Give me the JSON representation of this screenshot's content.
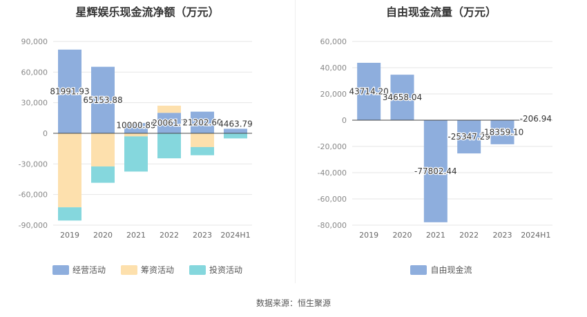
{
  "source": "数据来源：恒生聚源",
  "chart_data": [
    {
      "type": "bar",
      "stacked": true,
      "title": "星辉娱乐现金流净额（万元）",
      "categories": [
        "2019",
        "2020",
        "2021",
        "2022",
        "2023",
        "2024H1"
      ],
      "ylim": [
        -90000,
        90000
      ],
      "yticks": [
        90000,
        60000,
        30000,
        0,
        -30000,
        -60000,
        -90000
      ],
      "ytick_labels": [
        "90,000",
        "60,000",
        "30,000",
        "0",
        "-30,000",
        "-60,000",
        "-90,000"
      ],
      "grid": true,
      "legend_position": "bottom",
      "series": [
        {
          "name": "经营活动",
          "color": "#8eaedd",
          "values": [
            81991.93,
            65153.88,
            10000.85,
            20061.7,
            21202.6,
            4463.79
          ]
        },
        {
          "name": "筹资活动",
          "color": "#fde0ad",
          "values": [
            -72500,
            -32500,
            -3000,
            7000,
            -13500,
            0
          ]
        },
        {
          "name": "投资活动",
          "color": "#85d7dd",
          "values": [
            -13000,
            -16000,
            -34500,
            -24500,
            -8000,
            -5000
          ]
        }
      ],
      "data_labels": [
        "81991.93",
        "65153.88",
        "10000.85",
        "20061.7",
        "21202.60",
        "4463.79"
      ]
    },
    {
      "type": "bar",
      "title": "自由现金流量（万元）",
      "categories": [
        "2019",
        "2020",
        "2021",
        "2022",
        "2023",
        "2024H1"
      ],
      "ylim": [
        -80000,
        60000
      ],
      "yticks": [
        60000,
        40000,
        20000,
        0,
        -20000,
        -40000,
        -60000,
        -80000
      ],
      "ytick_labels": [
        "60,000",
        "40,000",
        "20,000",
        "0",
        "-20,000",
        "-40,000",
        "-60,000",
        "-80,000"
      ],
      "grid": true,
      "legend_position": "bottom",
      "series": [
        {
          "name": "自由现金流",
          "color": "#8eaedd",
          "values": [
            43714.2,
            34658.04,
            -77802.44,
            -25347.29,
            -18359.1,
            -206.94
          ]
        }
      ],
      "data_labels": [
        "43714.20",
        "34658.04",
        "-77802.44",
        "-25347.29",
        "-18359.10",
        "-206.94"
      ]
    }
  ]
}
